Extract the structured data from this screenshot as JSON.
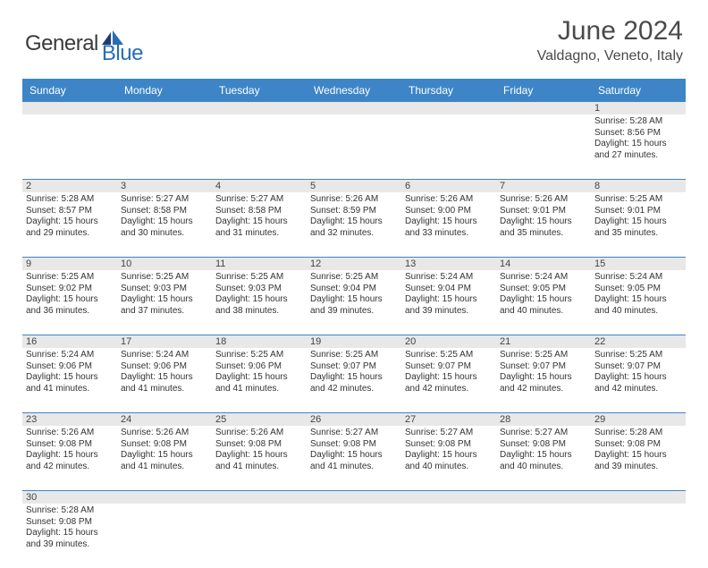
{
  "logo": {
    "part1": "General",
    "part2": "Blue"
  },
  "title": "June 2024",
  "location": "Valdagno, Veneto, Italy",
  "colors": {
    "header_bg": "#3d85c6",
    "header_text": "#ffffff",
    "daynum_bg": "#e8e8e8",
    "row_border": "#3d85c6",
    "logo_blue": "#2a6db4",
    "logo_gray": "#3a3a3a",
    "text": "#333333"
  },
  "day_headers": [
    "Sunday",
    "Monday",
    "Tuesday",
    "Wednesday",
    "Thursday",
    "Friday",
    "Saturday"
  ],
  "weeks": [
    {
      "nums": [
        "",
        "",
        "",
        "",
        "",
        "",
        "1"
      ],
      "cells": [
        null,
        null,
        null,
        null,
        null,
        null,
        {
          "sunrise": "Sunrise: 5:28 AM",
          "sunset": "Sunset: 8:56 PM",
          "day1": "Daylight: 15 hours",
          "day2": "and 27 minutes."
        }
      ]
    },
    {
      "nums": [
        "2",
        "3",
        "4",
        "5",
        "6",
        "7",
        "8"
      ],
      "cells": [
        {
          "sunrise": "Sunrise: 5:28 AM",
          "sunset": "Sunset: 8:57 PM",
          "day1": "Daylight: 15 hours",
          "day2": "and 29 minutes."
        },
        {
          "sunrise": "Sunrise: 5:27 AM",
          "sunset": "Sunset: 8:58 PM",
          "day1": "Daylight: 15 hours",
          "day2": "and 30 minutes."
        },
        {
          "sunrise": "Sunrise: 5:27 AM",
          "sunset": "Sunset: 8:58 PM",
          "day1": "Daylight: 15 hours",
          "day2": "and 31 minutes."
        },
        {
          "sunrise": "Sunrise: 5:26 AM",
          "sunset": "Sunset: 8:59 PM",
          "day1": "Daylight: 15 hours",
          "day2": "and 32 minutes."
        },
        {
          "sunrise": "Sunrise: 5:26 AM",
          "sunset": "Sunset: 9:00 PM",
          "day1": "Daylight: 15 hours",
          "day2": "and 33 minutes."
        },
        {
          "sunrise": "Sunrise: 5:26 AM",
          "sunset": "Sunset: 9:01 PM",
          "day1": "Daylight: 15 hours",
          "day2": "and 35 minutes."
        },
        {
          "sunrise": "Sunrise: 5:25 AM",
          "sunset": "Sunset: 9:01 PM",
          "day1": "Daylight: 15 hours",
          "day2": "and 35 minutes."
        }
      ]
    },
    {
      "nums": [
        "9",
        "10",
        "11",
        "12",
        "13",
        "14",
        "15"
      ],
      "cells": [
        {
          "sunrise": "Sunrise: 5:25 AM",
          "sunset": "Sunset: 9:02 PM",
          "day1": "Daylight: 15 hours",
          "day2": "and 36 minutes."
        },
        {
          "sunrise": "Sunrise: 5:25 AM",
          "sunset": "Sunset: 9:03 PM",
          "day1": "Daylight: 15 hours",
          "day2": "and 37 minutes."
        },
        {
          "sunrise": "Sunrise: 5:25 AM",
          "sunset": "Sunset: 9:03 PM",
          "day1": "Daylight: 15 hours",
          "day2": "and 38 minutes."
        },
        {
          "sunrise": "Sunrise: 5:25 AM",
          "sunset": "Sunset: 9:04 PM",
          "day1": "Daylight: 15 hours",
          "day2": "and 39 minutes."
        },
        {
          "sunrise": "Sunrise: 5:24 AM",
          "sunset": "Sunset: 9:04 PM",
          "day1": "Daylight: 15 hours",
          "day2": "and 39 minutes."
        },
        {
          "sunrise": "Sunrise: 5:24 AM",
          "sunset": "Sunset: 9:05 PM",
          "day1": "Daylight: 15 hours",
          "day2": "and 40 minutes."
        },
        {
          "sunrise": "Sunrise: 5:24 AM",
          "sunset": "Sunset: 9:05 PM",
          "day1": "Daylight: 15 hours",
          "day2": "and 40 minutes."
        }
      ]
    },
    {
      "nums": [
        "16",
        "17",
        "18",
        "19",
        "20",
        "21",
        "22"
      ],
      "cells": [
        {
          "sunrise": "Sunrise: 5:24 AM",
          "sunset": "Sunset: 9:06 PM",
          "day1": "Daylight: 15 hours",
          "day2": "and 41 minutes."
        },
        {
          "sunrise": "Sunrise: 5:24 AM",
          "sunset": "Sunset: 9:06 PM",
          "day1": "Daylight: 15 hours",
          "day2": "and 41 minutes."
        },
        {
          "sunrise": "Sunrise: 5:25 AM",
          "sunset": "Sunset: 9:06 PM",
          "day1": "Daylight: 15 hours",
          "day2": "and 41 minutes."
        },
        {
          "sunrise": "Sunrise: 5:25 AM",
          "sunset": "Sunset: 9:07 PM",
          "day1": "Daylight: 15 hours",
          "day2": "and 42 minutes."
        },
        {
          "sunrise": "Sunrise: 5:25 AM",
          "sunset": "Sunset: 9:07 PM",
          "day1": "Daylight: 15 hours",
          "day2": "and 42 minutes."
        },
        {
          "sunrise": "Sunrise: 5:25 AM",
          "sunset": "Sunset: 9:07 PM",
          "day1": "Daylight: 15 hours",
          "day2": "and 42 minutes."
        },
        {
          "sunrise": "Sunrise: 5:25 AM",
          "sunset": "Sunset: 9:07 PM",
          "day1": "Daylight: 15 hours",
          "day2": "and 42 minutes."
        }
      ]
    },
    {
      "nums": [
        "23",
        "24",
        "25",
        "26",
        "27",
        "28",
        "29"
      ],
      "cells": [
        {
          "sunrise": "Sunrise: 5:26 AM",
          "sunset": "Sunset: 9:08 PM",
          "day1": "Daylight: 15 hours",
          "day2": "and 42 minutes."
        },
        {
          "sunrise": "Sunrise: 5:26 AM",
          "sunset": "Sunset: 9:08 PM",
          "day1": "Daylight: 15 hours",
          "day2": "and 41 minutes."
        },
        {
          "sunrise": "Sunrise: 5:26 AM",
          "sunset": "Sunset: 9:08 PM",
          "day1": "Daylight: 15 hours",
          "day2": "and 41 minutes."
        },
        {
          "sunrise": "Sunrise: 5:27 AM",
          "sunset": "Sunset: 9:08 PM",
          "day1": "Daylight: 15 hours",
          "day2": "and 41 minutes."
        },
        {
          "sunrise": "Sunrise: 5:27 AM",
          "sunset": "Sunset: 9:08 PM",
          "day1": "Daylight: 15 hours",
          "day2": "and 40 minutes."
        },
        {
          "sunrise": "Sunrise: 5:27 AM",
          "sunset": "Sunset: 9:08 PM",
          "day1": "Daylight: 15 hours",
          "day2": "and 40 minutes."
        },
        {
          "sunrise": "Sunrise: 5:28 AM",
          "sunset": "Sunset: 9:08 PM",
          "day1": "Daylight: 15 hours",
          "day2": "and 39 minutes."
        }
      ]
    },
    {
      "nums": [
        "30",
        "",
        "",
        "",
        "",
        "",
        ""
      ],
      "cells": [
        {
          "sunrise": "Sunrise: 5:28 AM",
          "sunset": "Sunset: 9:08 PM",
          "day1": "Daylight: 15 hours",
          "day2": "and 39 minutes."
        },
        null,
        null,
        null,
        null,
        null,
        null
      ]
    }
  ]
}
